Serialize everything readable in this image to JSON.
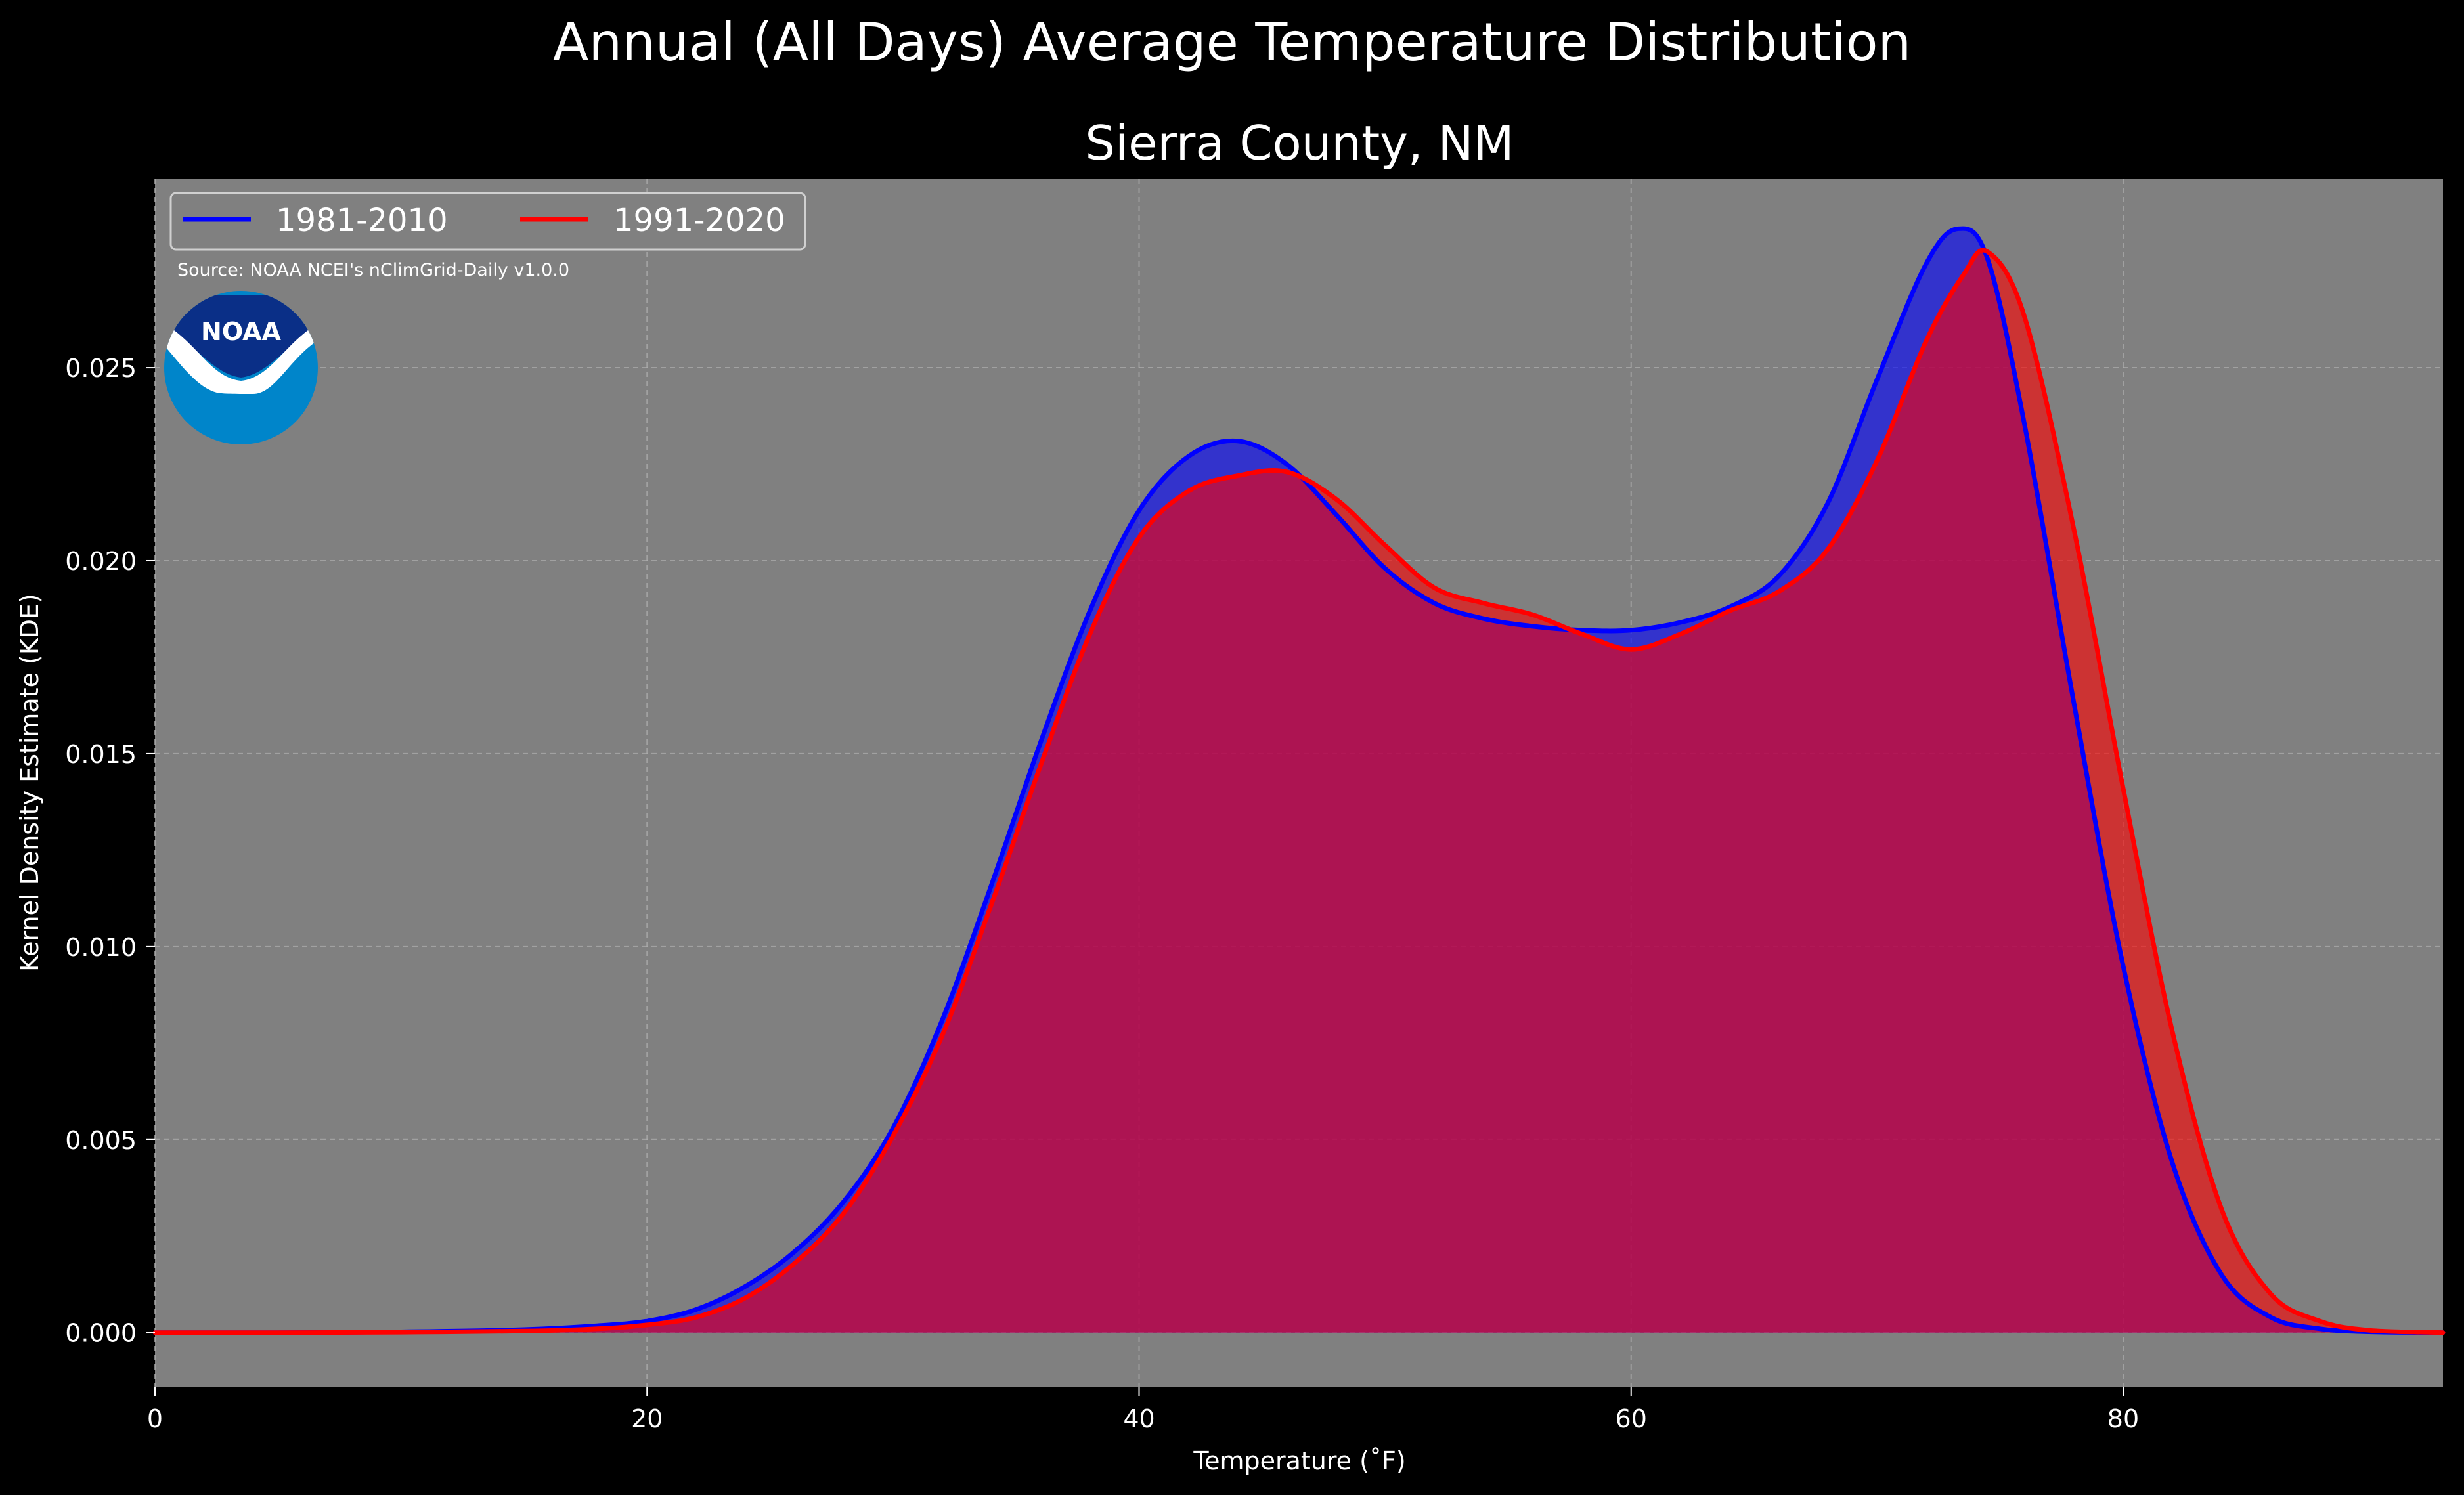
{
  "colors": {
    "background": "#000000",
    "plot_background": "#808080",
    "series_1": "#0000ff",
    "series_2": "#ff0000",
    "series_1_fill": "#0000ff",
    "series_2_fill": "#ff0000",
    "noaa_dark": "#0a2f87",
    "noaa_light": "#0085ca"
  },
  "logo": {
    "text": "NOAA"
  },
  "chart_data": {
    "type": "area",
    "suptitle": "Annual (All Days) Average Temperature Distribution",
    "title": "Sierra County, NM",
    "xlabel": "Temperature ($^\\circ$F)",
    "xlabel_display": "Temperature (˚F)",
    "ylabel": "Kernel Density Estimate (KDE)",
    "source": "Source: NOAA NCEI's nClimGrid-Daily v1.0.0",
    "xlim": [
      0,
      93
    ],
    "ylim": [
      -0.0014,
      0.0299
    ],
    "x_ticks": [
      0,
      20,
      40,
      60,
      80
    ],
    "x_tick_labels": [
      "0",
      "20",
      "40",
      "60",
      "80"
    ],
    "y_ticks": [
      0.0,
      0.005,
      0.01,
      0.015,
      0.02,
      0.025
    ],
    "y_tick_labels": [
      "0.000",
      "0.005",
      "0.010",
      "0.015",
      "0.020",
      "0.025"
    ],
    "grid": true,
    "legend_position": "top-left",
    "series": [
      {
        "name": "1981-2010",
        "color": "#0000ff",
        "x": [
          0,
          5,
          10,
          15,
          18,
          20,
          22,
          24,
          26,
          28,
          30,
          32,
          34,
          36,
          38,
          40,
          42,
          44,
          46,
          48,
          50,
          52,
          54,
          56,
          58,
          60,
          62,
          64,
          66,
          68,
          70,
          72,
          73.3,
          74.5,
          76,
          78,
          80,
          82,
          84,
          86,
          88,
          90,
          93
        ],
        "y": [
          0.0,
          0.0,
          2e-05,
          8e-05,
          0.00018,
          0.0003,
          0.0006,
          0.0012,
          0.0021,
          0.0034,
          0.0053,
          0.0081,
          0.0116,
          0.0153,
          0.0187,
          0.0213,
          0.0227,
          0.0231,
          0.0225,
          0.0212,
          0.0198,
          0.0189,
          0.0185,
          0.0183,
          0.0182,
          0.0182,
          0.0184,
          0.0188,
          0.0196,
          0.0215,
          0.0247,
          0.0277,
          0.0286,
          0.0278,
          0.0235,
          0.0163,
          0.0095,
          0.0044,
          0.0015,
          0.0004,
          0.0001,
          2e-05,
          0.0
        ]
      },
      {
        "name": "1991-2020",
        "color": "#ff0000",
        "x": [
          0,
          5,
          10,
          15,
          18,
          20,
          22,
          24,
          26,
          28,
          30,
          32,
          34,
          36,
          38,
          40,
          42,
          44,
          46,
          48,
          50,
          52,
          54,
          56,
          58,
          60,
          62,
          64,
          66,
          68,
          70,
          72,
          73.5,
          74.5,
          76,
          78,
          80,
          82,
          84,
          86,
          88,
          90,
          93
        ],
        "y": [
          0.0,
          0.0,
          1e-05,
          4e-05,
          0.0001,
          0.0002,
          0.0004,
          0.0009,
          0.0018,
          0.0031,
          0.0051,
          0.0077,
          0.0111,
          0.0147,
          0.0181,
          0.0206,
          0.0218,
          0.0222,
          0.0223,
          0.0216,
          0.0204,
          0.0193,
          0.0189,
          0.0186,
          0.0181,
          0.0177,
          0.0181,
          0.0187,
          0.0192,
          0.0203,
          0.0226,
          0.0257,
          0.0274,
          0.028,
          0.0263,
          0.0208,
          0.0141,
          0.0078,
          0.0032,
          0.001,
          0.0003,
          6e-05,
          0.0
        ]
      }
    ]
  }
}
